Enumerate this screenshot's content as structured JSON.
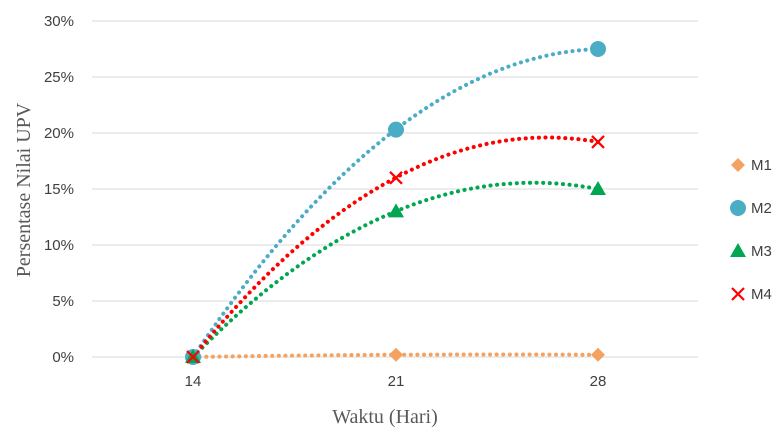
{
  "chart_data": {
    "type": "scatter",
    "title": "",
    "xlabel": "Waktu (Hari)",
    "ylabel": "Persentase Nilai UPV",
    "x": [
      14,
      21,
      28
    ],
    "xticks": [
      "14",
      "21",
      "28"
    ],
    "yticks": [
      "0%",
      "5%",
      "10%",
      "15%",
      "20%",
      "25%",
      "30%"
    ],
    "ylim": [
      0,
      30
    ],
    "grid": "horizontal",
    "legend_position": "right",
    "trendline": "dotted polynomial",
    "series": [
      {
        "name": "M1",
        "values": [
          0,
          0.2,
          0.2
        ],
        "color": "#F4A261",
        "marker": "diamond"
      },
      {
        "name": "M2",
        "values": [
          0,
          20.3,
          27.5
        ],
        "color": "#4BACC6",
        "marker": "circle"
      },
      {
        "name": "M3",
        "values": [
          0,
          13,
          15
        ],
        "color": "#00A651",
        "marker": "triangle"
      },
      {
        "name": "M4",
        "values": [
          0,
          16,
          19.2
        ],
        "color": "#FF0000",
        "marker": "x"
      }
    ]
  }
}
